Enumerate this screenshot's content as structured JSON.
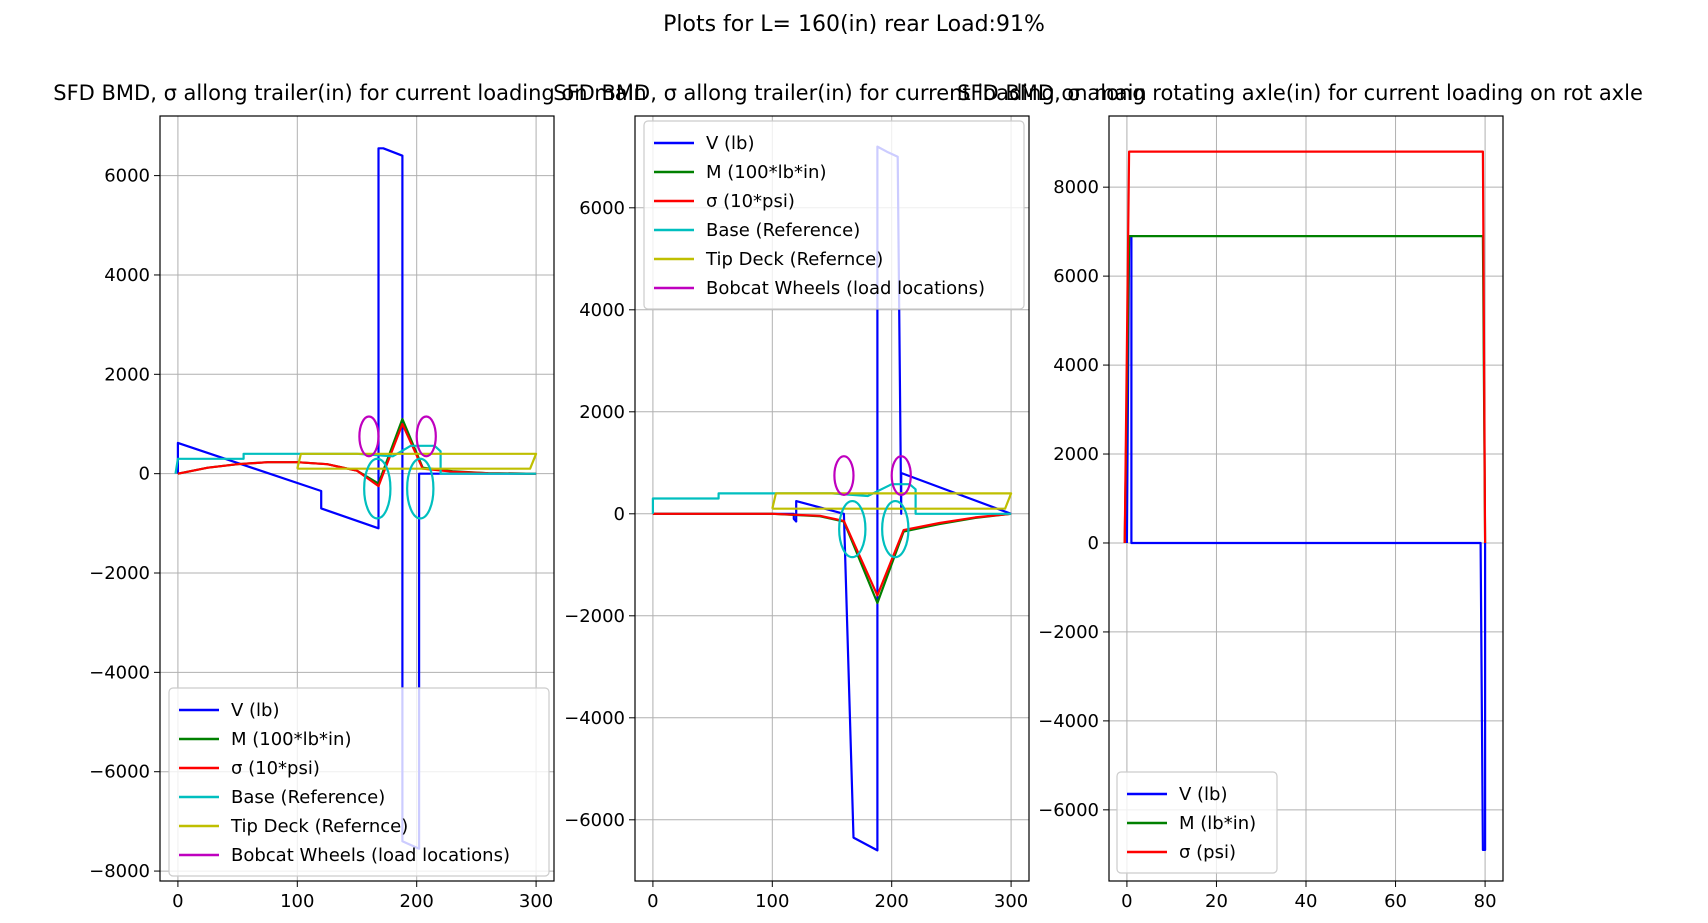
{
  "suptitle": "Plots for L= 160(in) rear Load:91%",
  "chart_data": [
    {
      "type": "line",
      "title": "SFD BMD, σ allong trailer(in) for current loading on main",
      "xlim": [
        -15,
        315
      ],
      "ylim": [
        -8200,
        7200
      ],
      "xticks": [
        0,
        100,
        200,
        300
      ],
      "yticks": [
        -8000,
        -6000,
        -4000,
        -2000,
        0,
        2000,
        4000,
        6000
      ],
      "grid": true,
      "legend_position": "lower right",
      "series": [
        {
          "name": "V (lb)",
          "color": "#0000ff",
          "x": [
            0,
            0,
            120,
            120,
            168,
            168,
            172,
            172,
            188,
            188,
            202,
            202,
            300
          ],
          "y": [
            0,
            620,
            -350,
            -700,
            -1100,
            6550,
            6550,
            6550,
            6400,
            -7400,
            -7550,
            0,
            0
          ]
        },
        {
          "name": "M (100*lb*in)",
          "color": "#008000",
          "x": [
            0,
            25,
            50,
            75,
            100,
            125,
            150,
            168,
            188,
            205,
            230,
            260,
            300
          ],
          "y": [
            0,
            120,
            190,
            230,
            230,
            190,
            60,
            -200,
            1100,
            120,
            50,
            10,
            0
          ]
        },
        {
          "name": "σ (10*psi)",
          "color": "#ff0000",
          "x": [
            0,
            25,
            50,
            75,
            100,
            125,
            150,
            168,
            188,
            205,
            230,
            260,
            300
          ],
          "y": [
            0,
            120,
            190,
            230,
            230,
            190,
            60,
            -250,
            1000,
            100,
            40,
            10,
            0
          ]
        },
        {
          "name": "Base (Reference)",
          "color": "#00bfbf",
          "x": [
            -2,
            0,
            55,
            55,
            150,
            180,
            195,
            215,
            220,
            220,
            300
          ],
          "y": [
            0,
            300,
            300,
            400,
            400,
            350,
            560,
            560,
            450,
            0,
            0
          ]
        },
        {
          "name": "Tip Deck (Refernce)",
          "color": "#bfbf00",
          "x": [
            100,
            103,
            300,
            295,
            103,
            100
          ],
          "y": [
            100,
            400,
            400,
            100,
            100,
            100
          ]
        },
        {
          "name": "Bobcat Wheels (load locations)",
          "color": "#bf00bf",
          "x": [
            160,
            178,
            198,
            217
          ],
          "y": [
            750,
            750,
            750,
            750
          ]
        }
      ],
      "ellipses": [
        {
          "series": "Base (Reference)",
          "cx": 167,
          "cy": -300,
          "rx": 11,
          "ry": 600
        },
        {
          "series": "Base (Reference)",
          "cx": 203,
          "cy": -300,
          "rx": 11,
          "ry": 600
        },
        {
          "series": "Bobcat Wheels (load locations)",
          "cx": 160,
          "cy": 750,
          "rx": 8,
          "ry": 400
        },
        {
          "series": "Bobcat Wheels (load locations)",
          "cx": 208,
          "cy": 750,
          "rx": 8,
          "ry": 400
        }
      ]
    },
    {
      "type": "line",
      "title": "SFD BMD, σ allong trailer(in) for current loading on main",
      "xlim": [
        -15,
        315
      ],
      "ylim": [
        -7200,
        7800
      ],
      "xticks": [
        0,
        100,
        200,
        300
      ],
      "yticks": [
        -6000,
        -4000,
        -2000,
        0,
        2000,
        4000,
        6000
      ],
      "grid": true,
      "legend_position": "upper right",
      "series": [
        {
          "name": "V (lb)",
          "color": "#0000ff",
          "x": [
            0,
            118,
            118,
            120,
            120,
            160,
            160,
            168,
            188,
            188,
            196,
            205,
            208,
            208,
            300
          ],
          "y": [
            0,
            0,
            -100,
            -150,
            250,
            0,
            0,
            -6350,
            -6600,
            7200,
            7100,
            7000,
            0,
            800,
            0
          ]
        },
        {
          "name": "M (100*lb*in)",
          "color": "#008000",
          "x": [
            0,
            50,
            100,
            140,
            160,
            188,
            210,
            240,
            270,
            300
          ],
          "y": [
            0,
            0,
            0,
            -50,
            -150,
            -1750,
            -350,
            -200,
            -80,
            0
          ]
        },
        {
          "name": "σ (10*psi)",
          "color": "#ff0000",
          "x": [
            0,
            50,
            100,
            140,
            160,
            188,
            210,
            240,
            270,
            300
          ],
          "y": [
            0,
            0,
            0,
            -40,
            -140,
            -1600,
            -320,
            -180,
            -70,
            0
          ]
        },
        {
          "name": "Base (Reference)",
          "color": "#00bfbf",
          "x": [
            0,
            0,
            55,
            55,
            150,
            180,
            200,
            215,
            220,
            220,
            300
          ],
          "y": [
            0,
            300,
            300,
            400,
            400,
            350,
            580,
            580,
            480,
            0,
            0
          ]
        },
        {
          "name": "Tip Deck (Refernce)",
          "color": "#bfbf00",
          "x": [
            100,
            103,
            300,
            295,
            103,
            100
          ],
          "y": [
            100,
            400,
            400,
            100,
            100,
            100
          ]
        },
        {
          "name": "Bobcat Wheels (load locations)",
          "color": "#bf00bf",
          "x": [
            160,
            178,
            198,
            217
          ],
          "y": [
            750,
            750,
            750,
            750
          ]
        }
      ],
      "ellipses": [
        {
          "series": "Base (Reference)",
          "cx": 167,
          "cy": -300,
          "rx": 11,
          "ry": 550
        },
        {
          "series": "Base (Reference)",
          "cx": 203,
          "cy": -300,
          "rx": 11,
          "ry": 550
        },
        {
          "series": "Bobcat Wheels (load locations)",
          "cx": 160,
          "cy": 750,
          "rx": 8,
          "ry": 380
        },
        {
          "series": "Bobcat Wheels (load locations)",
          "cx": 208,
          "cy": 750,
          "rx": 8,
          "ry": 380
        }
      ]
    },
    {
      "type": "line",
      "title": "SFD BMD, σ along rotating axle(in) for current loading on rot axle",
      "xlim": [
        -4,
        84
      ],
      "ylim": [
        -7600,
        9600
      ],
      "xticks": [
        0,
        20,
        40,
        60,
        80
      ],
      "yticks": [
        -6000,
        -4000,
        -2000,
        0,
        2000,
        4000,
        6000,
        8000
      ],
      "grid": true,
      "legend_position": "lower left",
      "series": [
        {
          "name": "V (lb)",
          "color": "#0000ff",
          "x": [
            0,
            0.5,
            1,
            1,
            79,
            79.5,
            80,
            80
          ],
          "y": [
            0,
            6900,
            6900,
            0,
            0,
            -6900,
            -6900,
            0
          ]
        },
        {
          "name": "M (lb*in)",
          "color": "#008000",
          "x": [
            -0.5,
            0.5,
            1,
            79,
            79.5,
            80
          ],
          "y": [
            0,
            6900,
            6900,
            6900,
            6900,
            0
          ]
        },
        {
          "name": "σ (psi)",
          "color": "#ff0000",
          "x": [
            -0.5,
            0.5,
            1,
            79,
            79.5,
            80
          ],
          "y": [
            0,
            8800,
            8800,
            8800,
            8800,
            0
          ]
        }
      ],
      "ellipses": []
    }
  ]
}
